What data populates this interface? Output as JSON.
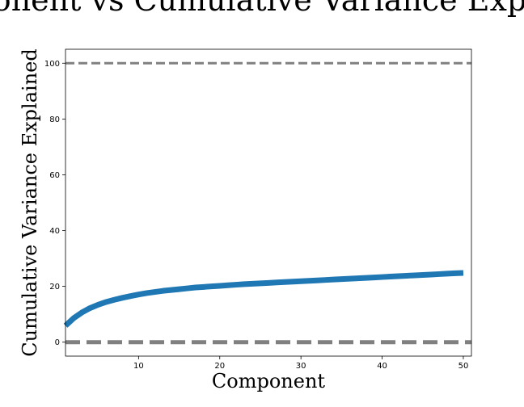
{
  "chart_data": {
    "type": "line",
    "title": "Component vs Cumulative Variance Explained",
    "xlabel": "Component",
    "ylabel": "Cumulative Variance Explained",
    "xlim": [
      1,
      51
    ],
    "ylim": [
      -5,
      105
    ],
    "xticks": [
      10,
      20,
      30,
      40,
      50
    ],
    "yticks": [
      0,
      20,
      40,
      60,
      80,
      100
    ],
    "grid": false,
    "reference_lines": [
      {
        "y": 100,
        "style": "dashed",
        "color": "#808080"
      },
      {
        "y": 0,
        "style": "dashed",
        "color": "#808080"
      }
    ],
    "series": [
      {
        "color": "#1f77b4",
        "x": [
          1,
          2,
          3,
          4,
          5,
          6,
          7,
          8,
          9,
          10,
          11,
          12,
          13,
          14,
          15,
          16,
          17,
          18,
          19,
          20,
          21,
          22,
          23,
          24,
          25,
          26,
          27,
          28,
          29,
          30,
          31,
          32,
          33,
          34,
          35,
          36,
          37,
          38,
          39,
          40,
          41,
          42,
          43,
          44,
          45,
          46,
          47,
          48,
          49,
          50
        ],
        "y": [
          5.9,
          8.6,
          10.6,
          12.2,
          13.4,
          14.4,
          15.2,
          15.9,
          16.5,
          17.1,
          17.6,
          18.0,
          18.4,
          18.7,
          19.0,
          19.3,
          19.6,
          19.8,
          20.0,
          20.2,
          20.4,
          20.6,
          20.8,
          20.95,
          21.1,
          21.25,
          21.4,
          21.55,
          21.7,
          21.85,
          22.0,
          22.15,
          22.3,
          22.45,
          22.6,
          22.75,
          22.9,
          23.05,
          23.2,
          23.35,
          23.5,
          23.65,
          23.8,
          23.95,
          24.1,
          24.25,
          24.4,
          24.55,
          24.7,
          24.8
        ]
      }
    ]
  }
}
